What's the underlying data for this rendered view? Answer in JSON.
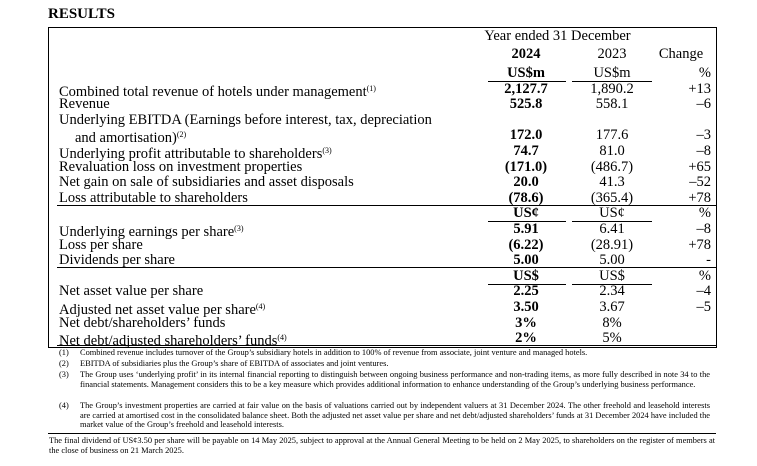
{
  "title": "RESULTS",
  "header": {
    "period": "Year ended 31 December",
    "years": [
      "2024",
      "2023"
    ],
    "change": "Change"
  },
  "sections": [
    {
      "units": [
        "US$m",
        "US$m",
        "%"
      ],
      "rows": [
        {
          "label": "Combined total revenue of hotels under management",
          "note": "(1)",
          "values": [
            "2,127.7",
            "1,890.2",
            "+13"
          ]
        },
        {
          "label": "Revenue",
          "values": [
            "525.8",
            "558.1",
            "–6"
          ]
        },
        {
          "label": "Underlying EBITDA (Earnings before interest, tax, depreciation",
          "label2": "and amortisation)",
          "note": "(2)",
          "values": [
            "172.0",
            "177.6",
            "–3"
          ]
        },
        {
          "label": "Underlying profit attributable to shareholders",
          "note": "(3)",
          "values": [
            "74.7",
            "81.0",
            "–8"
          ]
        },
        {
          "label": "Revaluation loss on investment properties",
          "values": [
            "(171.0)",
            "(486.7)",
            "+65"
          ]
        },
        {
          "label": "Net gain on sale of subsidiaries and asset disposals",
          "values": [
            "20.0",
            "41.3",
            "–52"
          ]
        },
        {
          "label": "Loss attributable to shareholders",
          "values": [
            "(78.6)",
            "(365.4)",
            "+78"
          ]
        }
      ]
    },
    {
      "units": [
        "US¢",
        "US¢",
        "%"
      ],
      "rows": [
        {
          "label": "Underlying earnings per share",
          "note": "(3)",
          "values": [
            "5.91",
            "6.41",
            "–8"
          ]
        },
        {
          "label": "Loss per share",
          "values": [
            "(6.22)",
            "(28.91)",
            "+78"
          ]
        },
        {
          "label": "Dividends per share",
          "values": [
            "5.00",
            "5.00",
            "-"
          ]
        }
      ]
    },
    {
      "units": [
        "US$",
        "US$",
        "%"
      ],
      "rows": [
        {
          "label": "Net asset value per share",
          "values": [
            "2.25",
            "2.34",
            "–4"
          ]
        },
        {
          "label": "Adjusted net asset value per share",
          "note": "(4)",
          "values": [
            "3.50",
            "3.67",
            "–5"
          ]
        },
        {
          "label": "Net debt/shareholders’ funds",
          "values": [
            "3%",
            "8%",
            null
          ]
        },
        {
          "label": "Net debt/adjusted shareholders’ funds",
          "note": "(4)",
          "values": [
            "2%",
            "5%",
            null
          ]
        }
      ]
    }
  ],
  "footnotes": [
    {
      "marker": "(1)",
      "text": "Combined revenue includes turnover of the Group’s subsidiary hotels in addition to 100% of revenue from associate, joint venture and managed hotels."
    },
    {
      "marker": "(2)",
      "text": "EBITDA of subsidiaries plus the Group’s share of EBITDA of associates and joint ventures."
    },
    {
      "marker": "(3)",
      "text": "The Group uses ‘underlying profit’ in its internal financial reporting to distinguish between ongoing business performance and non-trading items, as more fully described in note 34 to the financial statements. Management considers this to be a key measure which provides additional information to enhance understanding of the Group’s underlying business performance."
    },
    {
      "marker": "(4)",
      "text": "The Group’s investment properties are carried at fair value on the basis of valuations carried out by independent valuers at 31 December 2024. The other freehold and leasehold interests are carried at amortised cost in the consolidated balance sheet. Both the adjusted net asset value per share and net debt/adjusted shareholders’ funds at 31 December 2024 have included the market value of the Group’s freehold and leasehold interests."
    }
  ],
  "closing": "The final dividend of US¢3.50 per share will be payable on 14 May 2025, subject to approval at the Annual General Meeting to be held on 2 May 2025, to shareholders on the register of members at the close of business on 21 March 2025."
}
